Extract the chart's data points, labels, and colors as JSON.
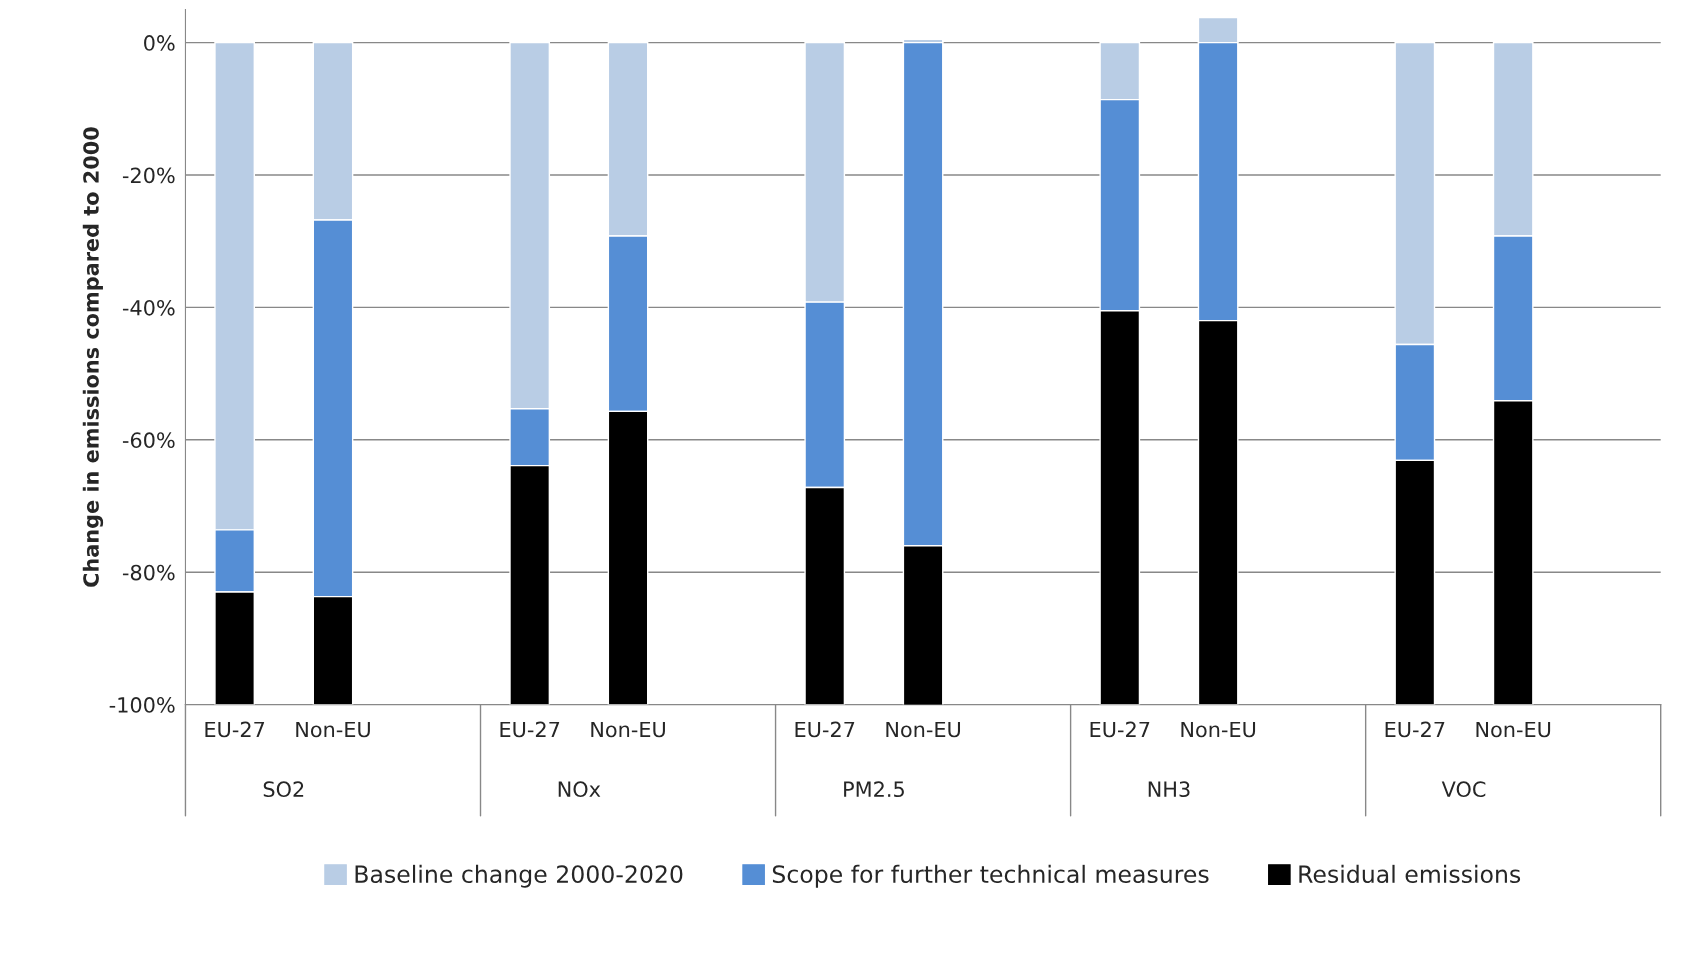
{
  "chart_data": {
    "type": "bar",
    "stacked": true,
    "ylabel": "Change in emissions compared to 2000",
    "categories": [
      "EU-27",
      "Non-EU",
      "EU-27",
      "Non-EU",
      "EU-27",
      "Non-EU",
      "EU-27",
      "Non-EU",
      "EU-27",
      "Non-EU"
    ],
    "annotations": [
      "SO2",
      "NOx",
      "PM2.5",
      "NH3",
      "VOC"
    ],
    "series": [
      {
        "name": "Baseline change 2000-2020",
        "color": "#b9cde5",
        "values": [
          -73.6,
          -26.8,
          -55.3,
          -29.2,
          -39.2,
          0.5,
          -8.6,
          3.8,
          -45.6,
          -29.2
        ]
      },
      {
        "name": "Scope for further technical measures",
        "color": "#558ed5",
        "values": [
          -9.4,
          -56.9,
          -8.6,
          -26.5,
          -28.0,
          -76.0,
          -31.9,
          -42.0,
          -17.5,
          -24.9
        ]
      },
      {
        "name": "Residual emissions",
        "color": "#000000",
        "values": [
          -17.0,
          -16.3,
          -36.1,
          -44.3,
          -32.8,
          -24.5,
          -59.5,
          -58.0,
          -36.9,
          -45.9
        ]
      }
    ],
    "ylim": [
      -100,
      5
    ],
    "yticks": [
      {
        "value": -100,
        "label": "-100%"
      },
      {
        "value": -80,
        "label": "-80%"
      },
      {
        "value": -60,
        "label": "-60%"
      },
      {
        "value": -40,
        "label": "-40%"
      },
      {
        "value": -20,
        "label": "-20%"
      },
      {
        "value": 0,
        "label": "0%"
      }
    ],
    "grid": "y",
    "legend": "bottom"
  }
}
